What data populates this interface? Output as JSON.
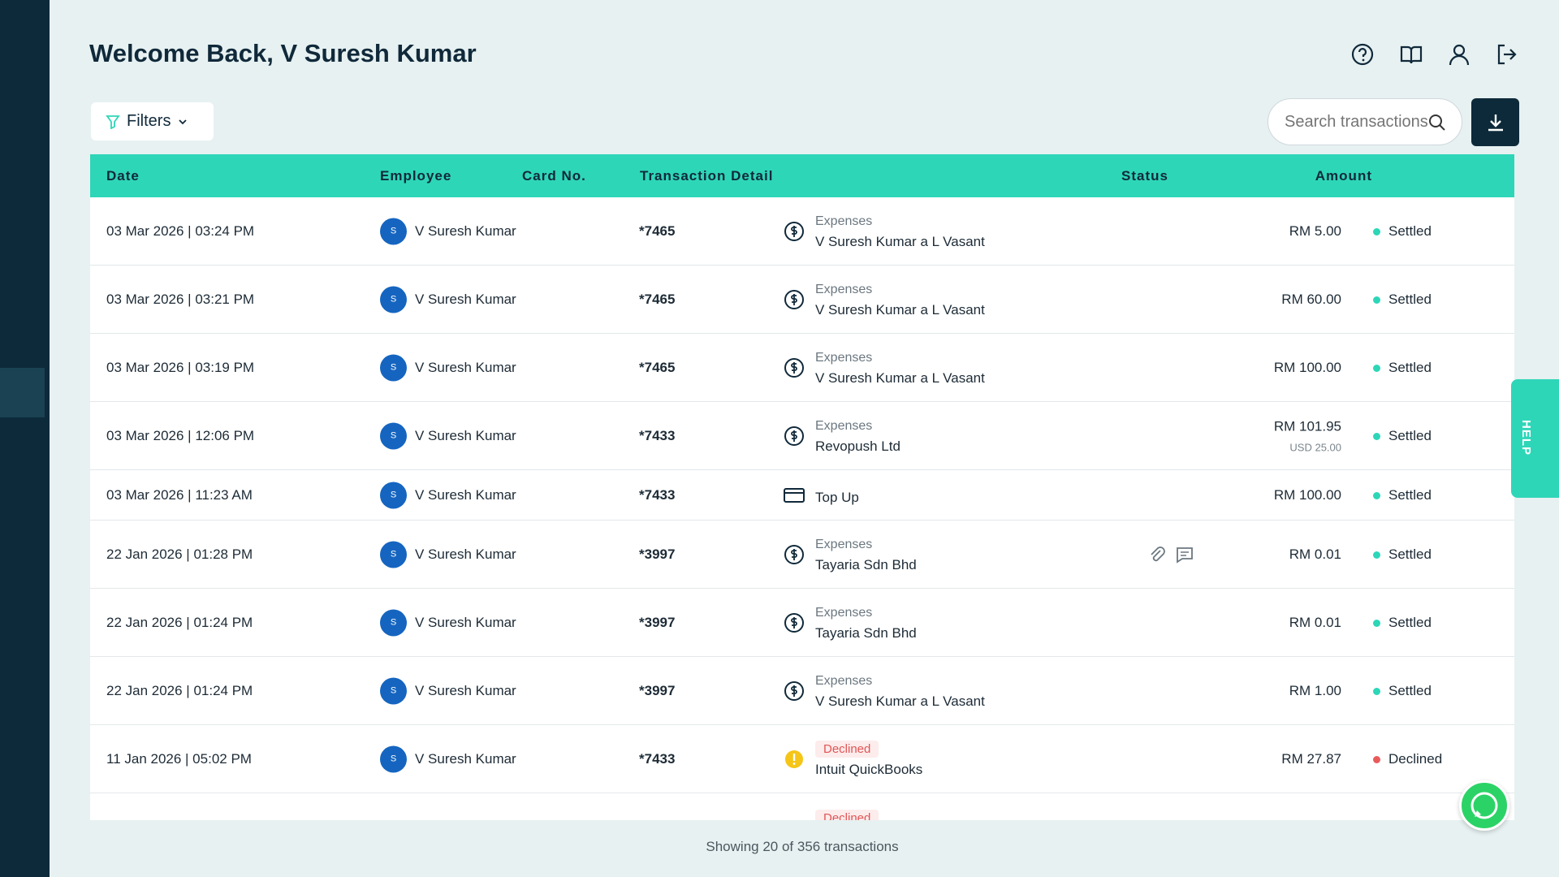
{
  "header": {
    "title": "Welcome Back, V Suresh Kumar"
  },
  "toolbar": {
    "filters": "Filters",
    "search_placeholder": "Search transactions"
  },
  "table": {
    "columns": [
      "Date",
      "Employee",
      "Card No.",
      "Transaction Detail",
      "Amount",
      "Status"
    ],
    "rows": [
      {
        "date": "03 Mar 2026 | 03:24 PM",
        "avatar": "S",
        "employee": "V Suresh Kumar",
        "card": "*7465",
        "type_label": "Expenses",
        "detail": "V Suresh Kumar a L Vasant",
        "amount": "RM 5.00",
        "status": "Settled",
        "status_color": "#2ed6b8"
      },
      {
        "date": "03 Mar 2026 | 03:21 PM",
        "avatar": "S",
        "employee": "V Suresh Kumar",
        "card": "*7465",
        "type_label": "Expenses",
        "detail": "V Suresh Kumar a L Vasant",
        "amount": "RM 60.00",
        "status": "Settled",
        "status_color": "#2ed6b8"
      },
      {
        "date": "03 Mar 2026 | 03:19 PM",
        "avatar": "S",
        "employee": "V Suresh Kumar",
        "card": "*7465",
        "type_label": "Expenses",
        "detail": "V Suresh Kumar a L Vasant",
        "amount": "RM 100.00",
        "status": "Settled",
        "status_color": "#2ed6b8"
      },
      {
        "date": "03 Mar 2026 | 12:06 PM",
        "avatar": "S",
        "employee": "V Suresh Kumar",
        "card": "*7433",
        "type_label": "Expenses",
        "detail": "Revopush Ltd",
        "amount": "RM 101.95",
        "amount_sub": "USD 25.00",
        "status": "Settled",
        "status_color": "#2ed6b8"
      },
      {
        "date": "03 Mar 2026 | 11:23 AM",
        "avatar": "S",
        "employee": "V Suresh Kumar",
        "card": "*7433",
        "detail": "Top Up",
        "amount": "RM 100.00",
        "status": "Settled",
        "status_color": "#2ed6b8"
      },
      {
        "date": "22 Jan 2026 | 01:28 PM",
        "avatar": "S",
        "employee": "V Suresh Kumar",
        "card": "*3997",
        "type_label": "Expenses",
        "detail": "Tayaria Sdn Bhd",
        "amount": "RM 0.01",
        "status": "Settled",
        "status_color": "#2ed6b8",
        "has_notes": true
      },
      {
        "date": "22 Jan 2026 | 01:24 PM",
        "avatar": "S",
        "employee": "V Suresh Kumar",
        "card": "*3997",
        "type_label": "Expenses",
        "detail": "Tayaria Sdn Bhd",
        "amount": "RM 0.01",
        "status": "Settled",
        "status_color": "#2ed6b8"
      },
      {
        "date": "22 Jan 2026 | 01:24 PM",
        "avatar": "S",
        "employee": "V Suresh Kumar",
        "card": "*3997",
        "type_label": "Expenses",
        "detail": "V Suresh Kumar a L Vasant",
        "amount": "RM 1.00",
        "status": "Settled",
        "status_color": "#2ed6b8"
      },
      {
        "date": "11 Jan 2026 | 05:02 PM",
        "avatar": "S",
        "employee": "V Suresh Kumar",
        "card": "*7433",
        "type_label": "Declined",
        "detail": "Intuit QuickBooks",
        "amount": "RM 27.87",
        "status": "Declined",
        "status_color": "#e95b5b"
      },
      {
        "type_label": "Declined"
      }
    ]
  },
  "footer": "Showing 20 of 356 transactions",
  "help": "HELP"
}
